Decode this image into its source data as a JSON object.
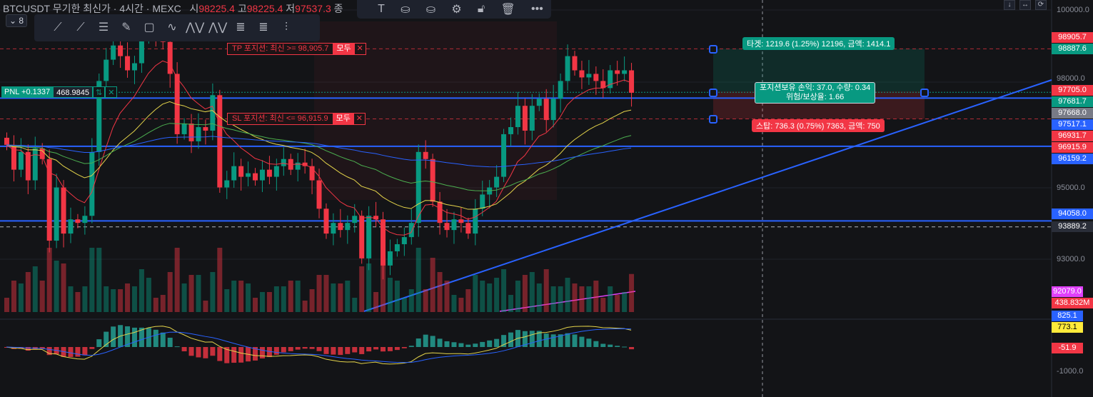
{
  "legend": {
    "symbol": "BTCUSDT 무기한 최신가 · 4시간 · MEXC",
    "o_label": "시",
    "o": "98225.4",
    "h_label": "고",
    "h": "98225.4",
    "l_label": "저",
    "l": "97537.3",
    "c_label": "종"
  },
  "interval_badge": "8",
  "drawing_tools": [
    "trend-line",
    "ray",
    "parallel-channel",
    "brush",
    "rectangle",
    "path",
    "xabcd-1-5",
    "xabcd-a-c",
    "fib-retracement",
    "fib-extension",
    "long-position"
  ],
  "top_tools": {
    "text_icon": "T",
    "items": [
      "text",
      "fill-color",
      "line-color",
      "settings",
      "unlock",
      "delete",
      "more"
    ]
  },
  "orders": {
    "tp": {
      "label": "TP 포지션: 최신 >= 98,905.7",
      "all": "모두"
    },
    "sl": {
      "label": "SL 포지션: 최신 <= 96,915.9",
      "all": "모두"
    }
  },
  "pnl": {
    "label": "PNL +0.1337",
    "value": "468.9845",
    "reverse": "⇅",
    "close": "✕"
  },
  "position_tool": {
    "target": "타겟: 1219.6 (1.25%) 12196, 금액: 1414.1",
    "center_line1": "포지션보유 손익: 37.0, 수량: 0.34",
    "center_line2": "위험/보상율: 1.66",
    "stop": "스탑: 736.3 (0.75%) 7363, 금액: 750"
  },
  "price_ticks": [
    "100000.0",
    "98000.0",
    "95000.0",
    "93000.0",
    "-1000.0"
  ],
  "axis_labels": [
    {
      "text": "98905.7",
      "color": "#f23645",
      "price": 98905.7
    },
    {
      "text": "98887.6",
      "color": "#089981",
      "price": 98887.6
    },
    {
      "text": "97705.0",
      "color": "#f23645",
      "price": 97705
    },
    {
      "text": "97681.7",
      "color": "#089981",
      "price": 97681.7
    },
    {
      "text": "97668.0",
      "color": "#787b86",
      "price": 97668
    },
    {
      "text": "97517.1",
      "color": "#2962ff",
      "price": 97517.1
    },
    {
      "text": "96931.7",
      "color": "#f23645",
      "price": 96931.7
    },
    {
      "text": "96915.9",
      "color": "#f23645",
      "price": 96915.9
    },
    {
      "text": "96159.2",
      "color": "#2962ff",
      "price": 96159.2
    },
    {
      "text": "94058.0",
      "color": "#2962ff",
      "price": 94058
    },
    {
      "text": "93889.2",
      "color": "#2a2e39",
      "price": 93889.2
    }
  ],
  "lower_labels": [
    {
      "text": "92079.0",
      "color": "#e040fb",
      "fg": "#fff"
    },
    {
      "text": "438.832M",
      "color": "#f23645",
      "fg": "#fff"
    },
    {
      "text": "825.1",
      "color": "#2962ff",
      "fg": "#fff"
    },
    {
      "text": "773.1",
      "color": "#ffeb3b",
      "fg": "#000"
    },
    {
      "text": "-51.9",
      "color": "#f23645",
      "fg": "#fff"
    }
  ],
  "colors": {
    "up": "#089981",
    "down": "#f23645",
    "horizontal_line": "#2962ff"
  },
  "closes": [
    96200,
    95500,
    96000,
    95200,
    96100,
    95800,
    93500,
    95000,
    93700,
    94100,
    94000,
    94200,
    96000,
    98000,
    98600,
    99000,
    98700,
    98300,
    98500,
    99200,
    99500,
    99300,
    99100,
    98200,
    96500,
    96800,
    96300,
    96700,
    96600,
    97600,
    95000,
    95200,
    95600,
    95300,
    95400,
    95200,
    95500,
    95300,
    95600,
    95800,
    95500,
    95700,
    95600,
    95200,
    94400,
    93700,
    94000,
    93800,
    94000,
    94200,
    93000,
    94200,
    94100,
    92800,
    93200,
    93400,
    93600,
    94000,
    96000,
    95800,
    94600,
    94000,
    93800,
    94100,
    94000,
    93700,
    94400,
    94800,
    95000,
    95300,
    96500,
    96700,
    97300,
    96600,
    97300,
    97500,
    96900,
    97500,
    98000,
    98700,
    98300,
    98100,
    98200,
    98000,
    97800,
    98300,
    98200,
    98300,
    97668
  ],
  "macd_ticks": [
    "-1000.0"
  ],
  "window_buttons": [
    "↓",
    "↔",
    "⟳"
  ]
}
